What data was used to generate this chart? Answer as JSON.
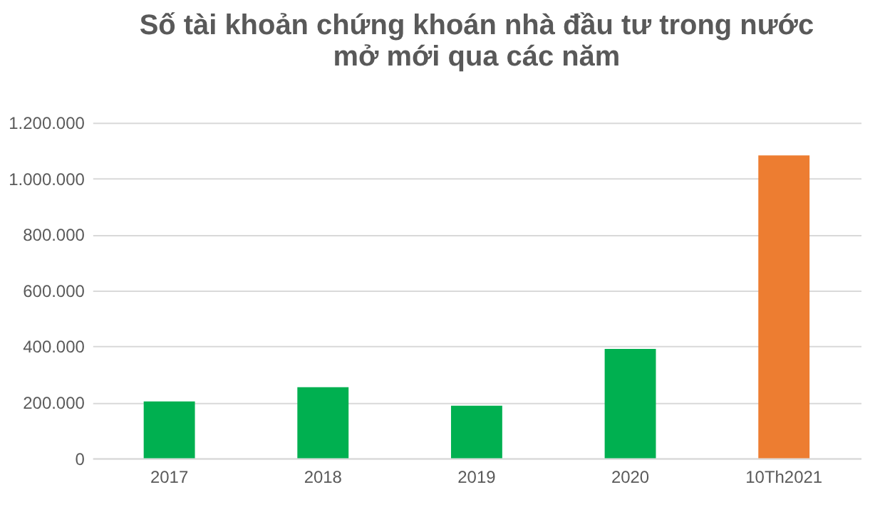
{
  "chart_data": {
    "type": "bar",
    "title": "Số tài khoản chứng khoán nhà đầu tư trong nước\nmở mới qua các năm",
    "categories": [
      "2017",
      "2018",
      "2019",
      "2020",
      "10Th2021"
    ],
    "values": [
      203000,
      254000,
      188000,
      391000,
      1083000
    ],
    "colors": [
      "#00b050",
      "#00b050",
      "#00b050",
      "#00b050",
      "#ed7d31"
    ],
    "ylim": [
      0,
      1200000
    ],
    "yticks": [
      0,
      {
        "value": 200000,
        "label": "200.000"
      },
      {
        "value": 400000,
        "label": "400.000"
      },
      {
        "value": 600000,
        "label": "600.000"
      },
      {
        "value": 800000,
        "label": "800.000"
      },
      {
        "value": 1000000,
        "label": "1.000.000"
      },
      {
        "value": 1200000,
        "label": "1.200.000"
      }
    ],
    "grid": "y",
    "legend": false
  }
}
